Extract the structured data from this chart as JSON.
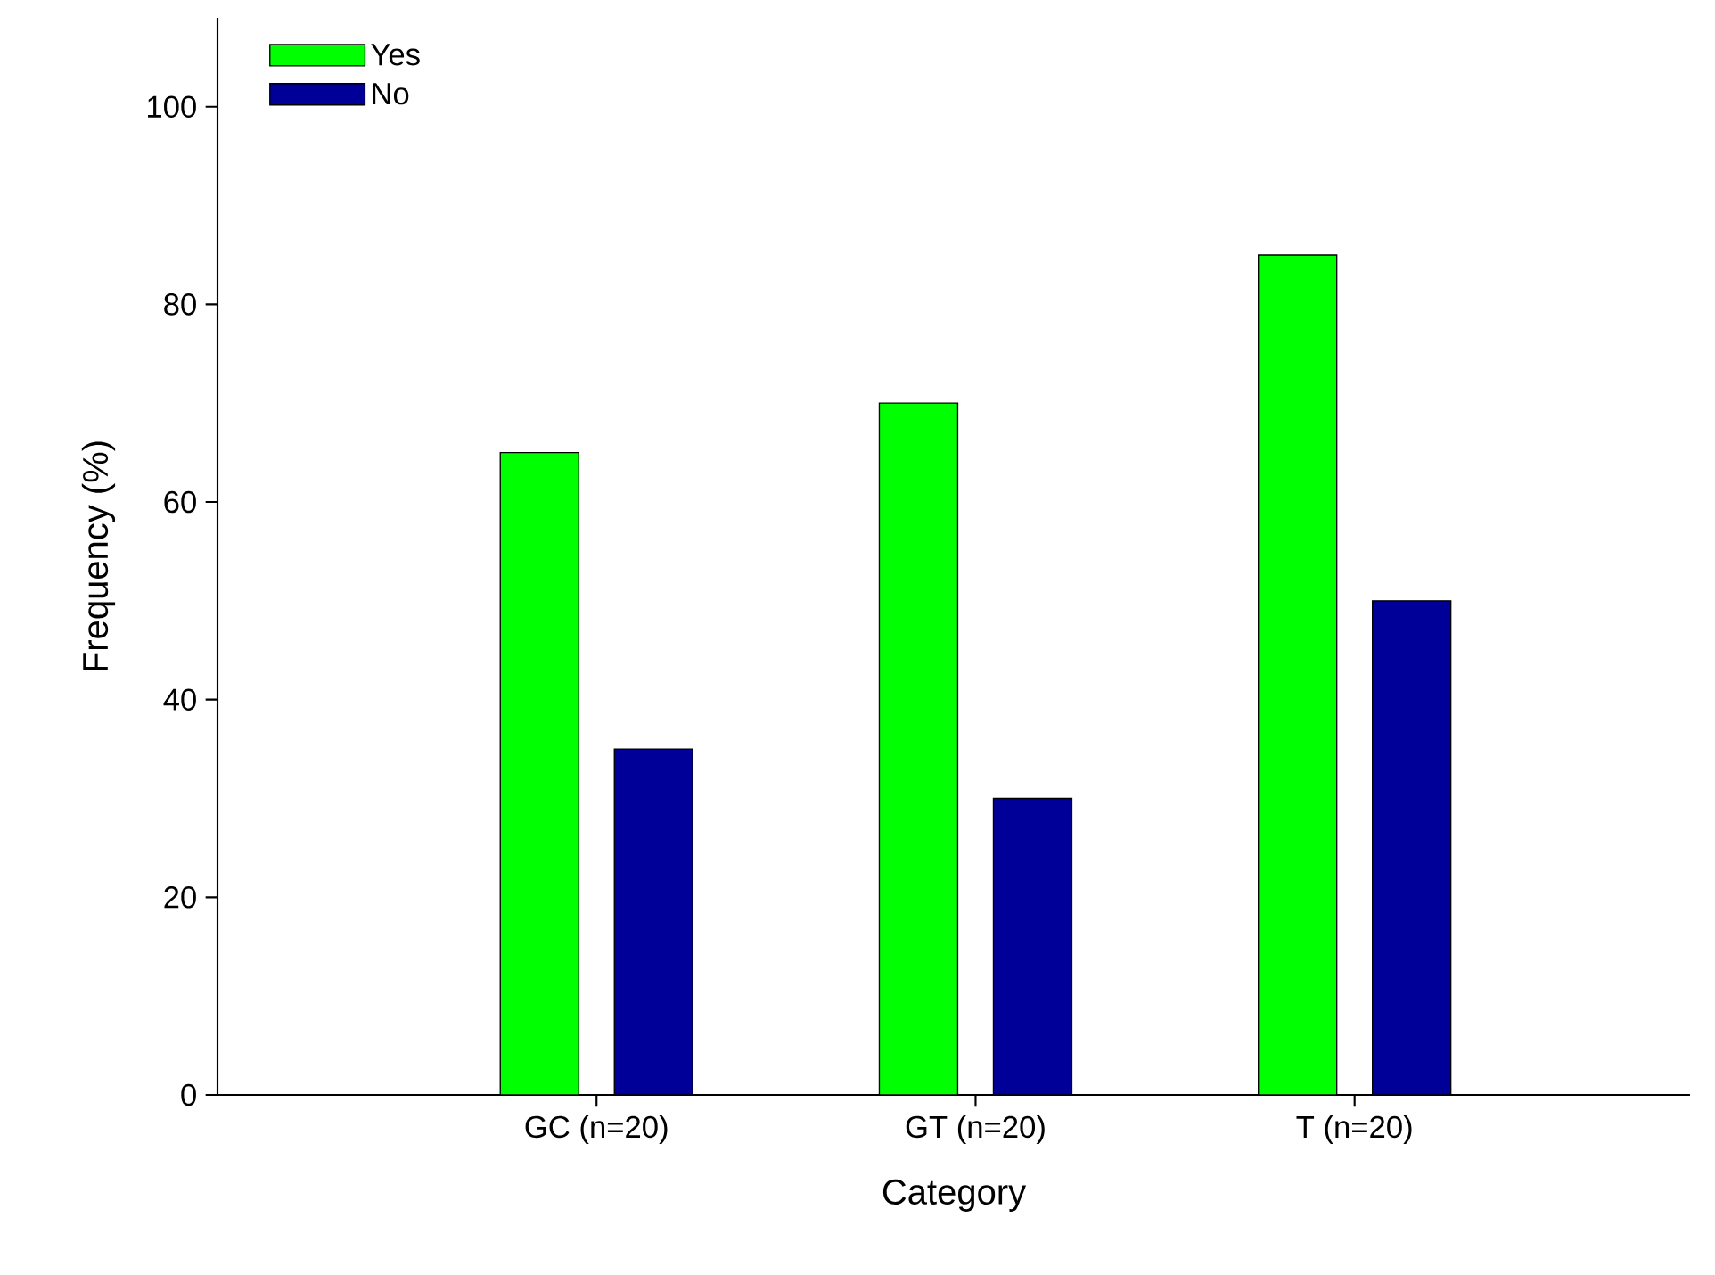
{
  "chart_data": {
    "type": "bar",
    "xlabel": "Category",
    "ylabel": "Frequency (%)",
    "categories": [
      "GC (n=20)",
      "GT (n=20)",
      "T (n=20)"
    ],
    "series": [
      {
        "name": "Yes",
        "color": "#00ff00",
        "values": [
          65,
          70,
          85
        ]
      },
      {
        "name": "No",
        "color": "#000099",
        "values": [
          35,
          30,
          50
        ]
      }
    ],
    "ylim": [
      0,
      109
    ],
    "yticks": [
      0,
      20,
      40,
      60,
      80,
      100
    ],
    "grid": false,
    "legend": "top left"
  }
}
